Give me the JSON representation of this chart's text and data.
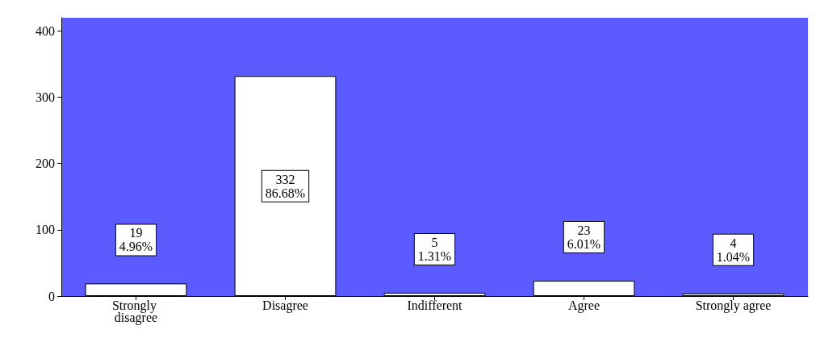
{
  "chart_data": {
    "type": "bar",
    "categories": [
      "Strongly disagree",
      "Disagree",
      "Indifferent",
      "Agree",
      "Strongly agree"
    ],
    "values": [
      19,
      332,
      5,
      23,
      4
    ],
    "value_labels": [
      "19\n4.96%",
      "332\n86.68%",
      "5\n1.31%",
      "23\n6.01%",
      "4\n1.04%"
    ],
    "color": "#ffffff",
    "ylim": [
      0,
      420
    ],
    "yticks": [
      0,
      100,
      200,
      300,
      400
    ]
  }
}
